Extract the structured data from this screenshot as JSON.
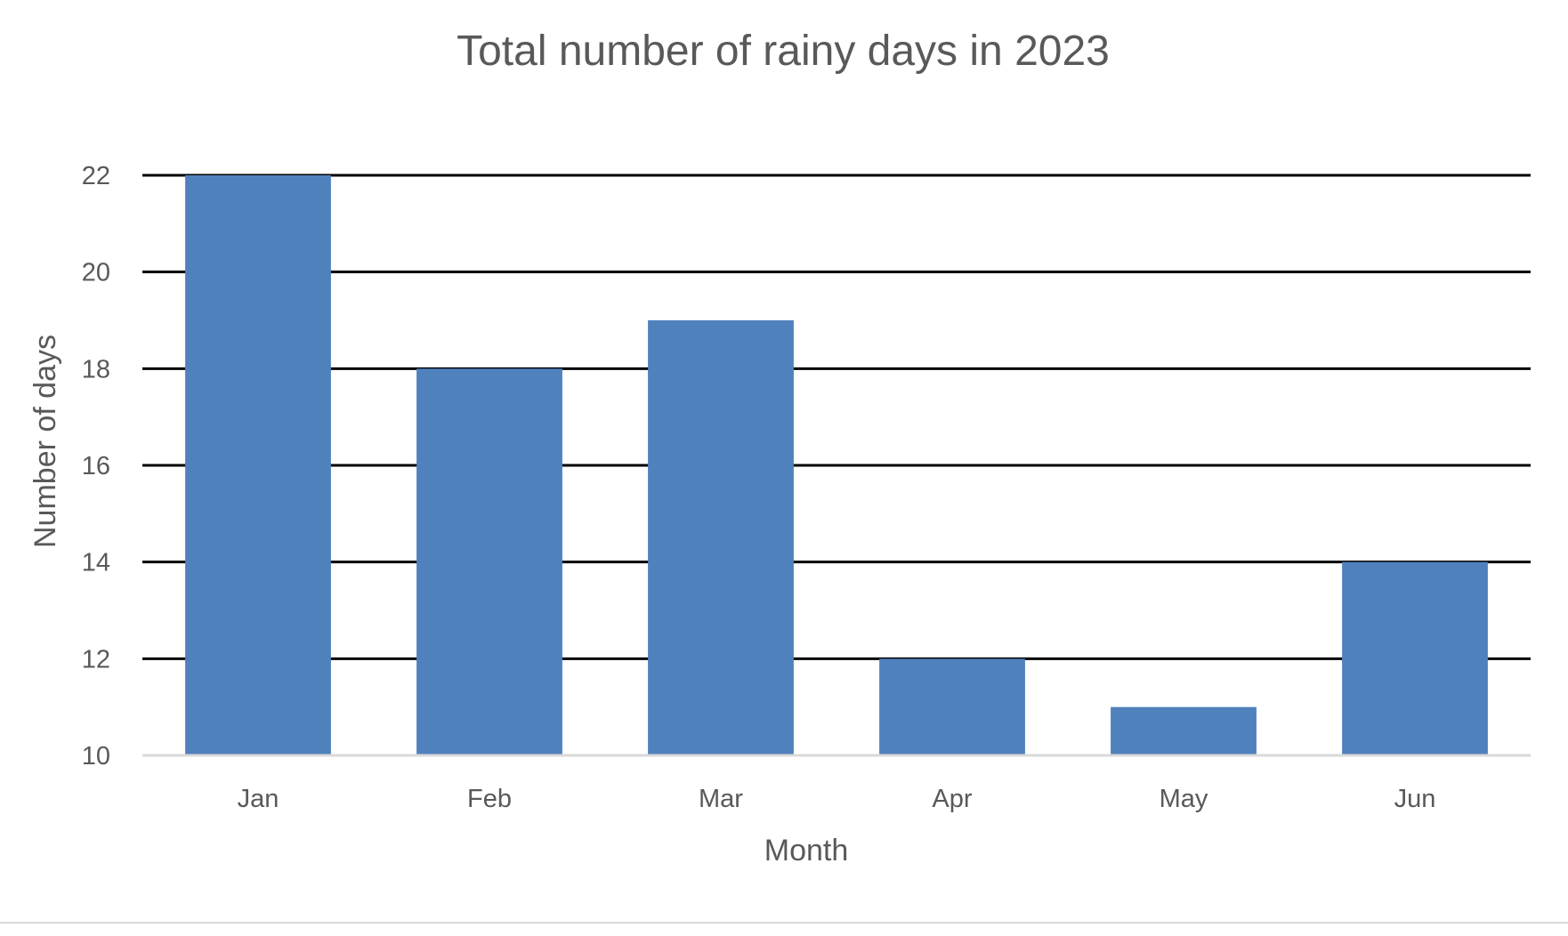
{
  "chart_data": {
    "type": "bar",
    "title": "Total number of rainy days in 2023",
    "xlabel": "Month",
    "ylabel": "Number of days",
    "categories": [
      "Jan",
      "Feb",
      "Mar",
      "Apr",
      "May",
      "Jun"
    ],
    "values": [
      22,
      18,
      19,
      12,
      11,
      14
    ],
    "ylim": [
      10,
      22
    ],
    "yticks": [
      "10",
      "12",
      "14",
      "16",
      "18",
      "20",
      "22"
    ],
    "grid": true,
    "legend": "none",
    "colors": {
      "bar": "#4F81BD",
      "gridline": "#000000",
      "baseline": "#D9D9D9",
      "text": "#595959"
    }
  }
}
